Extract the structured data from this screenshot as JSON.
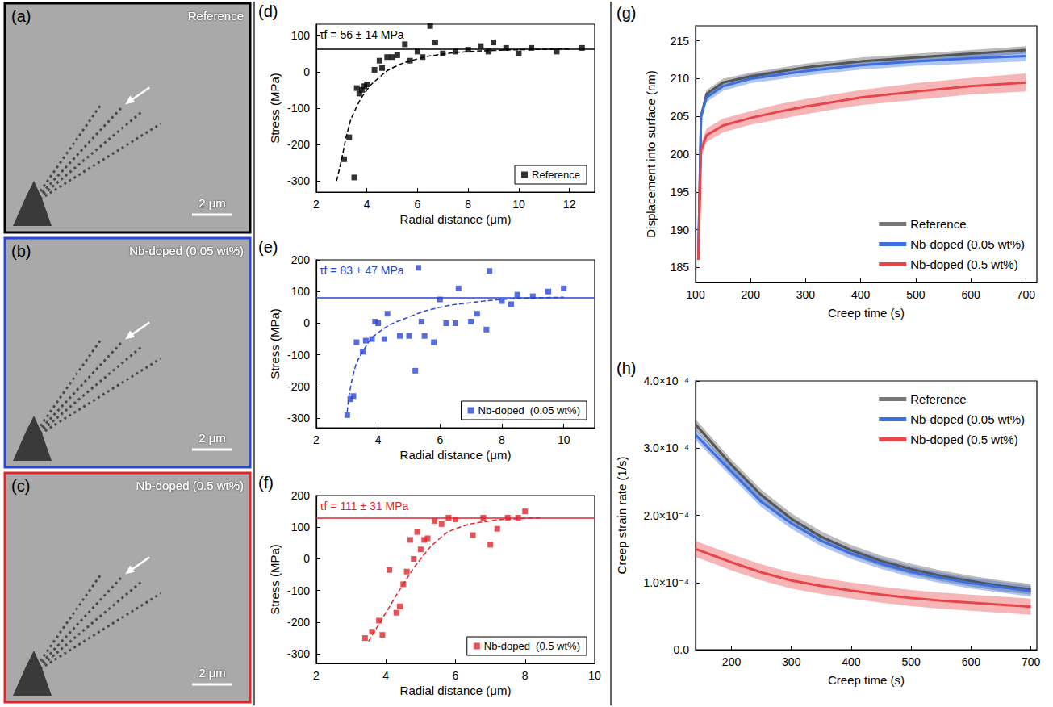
{
  "images": [
    {
      "letter": "(a)",
      "label": "Reference",
      "scale_bar": "2 μm",
      "color": "#000000"
    },
    {
      "letter": "(b)",
      "label": "Nb-doped (0.05 wt%)",
      "scale_bar": "2 μm",
      "color": "#2a46d6"
    },
    {
      "letter": "(c)",
      "label": "Nb-doped (0.5 wt%)",
      "scale_bar": "2 μm",
      "color": "#e0262a"
    }
  ],
  "chart_data": [
    {
      "letter": "(d)",
      "type": "scatter",
      "x_label": "Radial distance (μm)",
      "y_label": "Stress (MPa)",
      "xlim": [
        2,
        13
      ],
      "xticks": [
        2,
        4,
        6,
        8,
        10,
        12
      ],
      "ylim": [
        -330,
        130
      ],
      "yticks": [
        -300,
        -200,
        -100,
        0,
        100
      ],
      "grid": false,
      "legend": "lower right",
      "annotation": "τf = 56 ± 14 MPa",
      "hline": 62,
      "series": [
        {
          "name": "Reference",
          "color": "#000000",
          "marker": "square",
          "x": [
            3.1,
            3.3,
            3.5,
            3.6,
            3.7,
            3.8,
            3.9,
            4.0,
            4.3,
            4.5,
            4.6,
            4.8,
            5.0,
            5.2,
            5.5,
            5.7,
            6.0,
            6.2,
            6.5,
            6.7,
            7.0,
            7.5,
            8.0,
            8.5,
            8.8,
            9.0,
            9.5,
            10.0,
            10.5,
            11.5,
            12.5
          ],
          "values": [
            -240,
            -180,
            -290,
            -45,
            -60,
            -50,
            -40,
            -35,
            5,
            30,
            10,
            40,
            40,
            45,
            75,
            30,
            55,
            40,
            125,
            80,
            50,
            55,
            60,
            70,
            55,
            80,
            65,
            50,
            65,
            55,
            65
          ]
        }
      ],
      "fit": {
        "line_style": "dashed",
        "x": [
          2.8,
          3.0,
          3.25,
          3.5,
          4.0,
          4.5,
          5.0,
          6.0,
          7.0,
          8.0,
          9.0,
          10.0,
          12.0
        ],
        "values": [
          -300,
          -240,
          -160,
          -110,
          -50,
          -15,
          10,
          35,
          48,
          55,
          58,
          60,
          62
        ]
      }
    },
    {
      "letter": "(e)",
      "type": "scatter",
      "x_label": "Radial distance (μm)",
      "y_label": "Stress (MPa)",
      "xlim": [
        2,
        11
      ],
      "xticks": [
        2,
        4,
        6,
        8,
        10
      ],
      "ylim": [
        -330,
        200
      ],
      "yticks": [
        -300,
        -200,
        -100,
        0,
        100,
        200
      ],
      "grid": false,
      "legend": "lower right",
      "annotation": "τf = 83 ± 47 MPa",
      "hline": 80,
      "series": [
        {
          "name": "Nb-doped  (0.05 wt%)",
          "color": "#2a46d6",
          "marker": "square",
          "x": [
            3.0,
            3.1,
            3.2,
            3.3,
            3.5,
            3.6,
            3.8,
            3.9,
            4.0,
            4.2,
            4.3,
            4.7,
            5.0,
            5.2,
            5.3,
            5.4,
            5.5,
            5.8,
            6.0,
            6.2,
            6.5,
            6.6,
            7.0,
            7.2,
            7.5,
            7.6,
            8.0,
            8.3,
            8.5,
            9.0,
            9.5,
            10.0
          ],
          "values": [
            -290,
            -240,
            -230,
            -60,
            -90,
            -55,
            -50,
            5,
            0,
            -50,
            30,
            -40,
            -40,
            -150,
            175,
            5,
            -40,
            -60,
            75,
            0,
            0,
            110,
            5,
            30,
            -20,
            165,
            70,
            60,
            90,
            85,
            100,
            110
          ]
        }
      ],
      "fit": {
        "line_style": "dashed",
        "x": [
          3.0,
          3.2,
          3.5,
          4.0,
          5.0,
          6.0,
          7.0,
          8.0,
          9.0,
          10.0
        ],
        "values": [
          -280,
          -160,
          -90,
          -30,
          20,
          50,
          65,
          75,
          80,
          82
        ]
      }
    },
    {
      "letter": "(f)",
      "type": "scatter",
      "x_label": "Radial distance (μm)",
      "y_label": "Stress (MPa)",
      "xlim": [
        2,
        10
      ],
      "xticks": [
        2,
        4,
        6,
        8,
        10
      ],
      "ylim": [
        -330,
        200
      ],
      "yticks": [
        -300,
        -200,
        -100,
        0,
        100,
        200
      ],
      "grid": false,
      "legend": "lower right",
      "annotation": "τf = 111 ± 31 MPa",
      "hline": 130,
      "series": [
        {
          "name": "Nb-doped  (0.5 wt%)",
          "color": "#e0262a",
          "marker": "square",
          "x": [
            3.4,
            3.6,
            3.8,
            3.9,
            4.1,
            4.3,
            4.4,
            4.5,
            4.6,
            4.7,
            4.8,
            4.9,
            5.0,
            5.1,
            5.2,
            5.4,
            5.6,
            5.8,
            6.0,
            6.5,
            6.8,
            7.0,
            7.2,
            7.5,
            7.8,
            8.0
          ],
          "values": [
            -250,
            -230,
            -195,
            -240,
            -35,
            -170,
            -150,
            -80,
            -40,
            60,
            0,
            85,
            30,
            60,
            65,
            120,
            110,
            130,
            125,
            75,
            130,
            45,
            95,
            130,
            130,
            150
          ]
        }
      ],
      "fit": {
        "line_style": "dashed",
        "x": [
          3.5,
          4.0,
          4.5,
          5.0,
          5.5,
          6.0,
          7.0,
          8.0,
          8.5
        ],
        "values": [
          -260,
          -170,
          -80,
          0,
          60,
          95,
          120,
          128,
          130
        ]
      }
    },
    {
      "letter": "(g)",
      "type": "line",
      "x_label": "Creep time (s)",
      "y_label": "Displacement into surface (nm)",
      "xlim": [
        100,
        720
      ],
      "xticks": [
        100,
        200,
        300,
        400,
        500,
        600,
        700
      ],
      "ylim": [
        183,
        217
      ],
      "yticks": [
        185,
        190,
        195,
        200,
        205,
        210,
        215
      ],
      "grid": false,
      "legend": "lower right",
      "x": [
        105,
        110,
        120,
        150,
        200,
        250,
        300,
        400,
        500,
        600,
        700
      ],
      "series": [
        {
          "name": "Reference",
          "color": "#555555",
          "values": [
            186,
            205,
            208,
            209.5,
            210.3,
            210.9,
            211.5,
            212.3,
            212.8,
            213.3,
            213.8
          ],
          "error": [
            0.5,
            0.5,
            0.5,
            0.5,
            0.5,
            0.5,
            0.5,
            0.5,
            0.5,
            0.5,
            0.5
          ]
        },
        {
          "name": "Nb-doped (0.05 wt%)",
          "color": "#3a6fe0",
          "values": [
            186,
            205,
            207.5,
            209,
            210,
            210.5,
            211,
            211.8,
            212.3,
            212.7,
            213
          ],
          "error": [
            0.6,
            0.6,
            0.6,
            0.6,
            0.6,
            0.6,
            0.6,
            0.6,
            0.6,
            0.7,
            0.7
          ]
        },
        {
          "name": "Nb-doped (0.5 wt%)",
          "color": "#e8454a",
          "values": [
            186,
            200.5,
            202.5,
            203.8,
            204.8,
            205.6,
            206.3,
            207.5,
            208.3,
            209,
            209.5
          ],
          "error": [
            0.9,
            0.9,
            0.9,
            0.9,
            0.9,
            1.0,
            1.0,
            1.0,
            1.1,
            1.1,
            1.2
          ]
        }
      ]
    },
    {
      "letter": "(h)",
      "type": "line",
      "x_label": "Creep time (s)",
      "y_label": "Creep strain rate (1/s)",
      "xlim": [
        140,
        710
      ],
      "xticks": [
        200,
        300,
        400,
        500,
        600,
        700
      ],
      "ylim": [
        0,
        0.0004
      ],
      "yticks": [
        {
          "value": 0,
          "label": "0.0"
        },
        {
          "value": 0.0001,
          "label": "1.0×10⁻⁴"
        },
        {
          "value": 0.0002,
          "label": "2.0×10⁻⁴"
        },
        {
          "value": 0.0003,
          "label": "3.0×10⁻⁴"
        },
        {
          "value": 0.0004,
          "label": "4.0×10⁻⁴"
        }
      ],
      "grid": false,
      "legend": "upper right",
      "x": [
        140,
        200,
        250,
        300,
        350,
        400,
        450,
        500,
        550,
        600,
        650,
        700
      ],
      "series": [
        {
          "name": "Reference",
          "color": "#555555",
          "values": [
            0.000335,
            0.000275,
            0.00023,
            0.000195,
            0.000168,
            0.000148,
            0.000132,
            0.00012,
            0.00011,
            0.000102,
            9.5e-05,
            9e-05
          ],
          "error": [
            8e-06,
            8e-06,
            8e-06,
            8e-06,
            8e-06,
            8e-06,
            8e-06,
            8e-06,
            8e-06,
            8e-06,
            8e-06,
            8e-06
          ]
        },
        {
          "name": "Nb-doped (0.05 wt%)",
          "color": "#3a6fe0",
          "values": [
            0.00032,
            0.000265,
            0.00022,
            0.000188,
            0.000162,
            0.000143,
            0.000128,
            0.000116,
            0.000107,
            9.9e-05,
            9.3e-05,
            8.7e-05
          ],
          "error": [
            8e-06,
            8e-06,
            8e-06,
            8e-06,
            8e-06,
            8e-06,
            8e-06,
            8e-06,
            8e-06,
            8e-06,
            8e-06,
            8e-06
          ]
        },
        {
          "name": "Nb-doped (0.5 wt%)",
          "color": "#e8454a",
          "values": [
            0.00015,
            0.00013,
            0.000115,
            0.000103,
            9.5e-05,
            8.8e-05,
            8.2e-05,
            7.7e-05,
            7.3e-05,
            7e-05,
            6.7e-05,
            6.4e-05
          ],
          "error": [
            1.2e-05,
            1.2e-05,
            1.2e-05,
            1.2e-05,
            1.2e-05,
            1.2e-05,
            1.2e-05,
            1.2e-05,
            1.2e-05,
            1.2e-05,
            1.2e-05,
            1.2e-05
          ]
        }
      ]
    }
  ]
}
